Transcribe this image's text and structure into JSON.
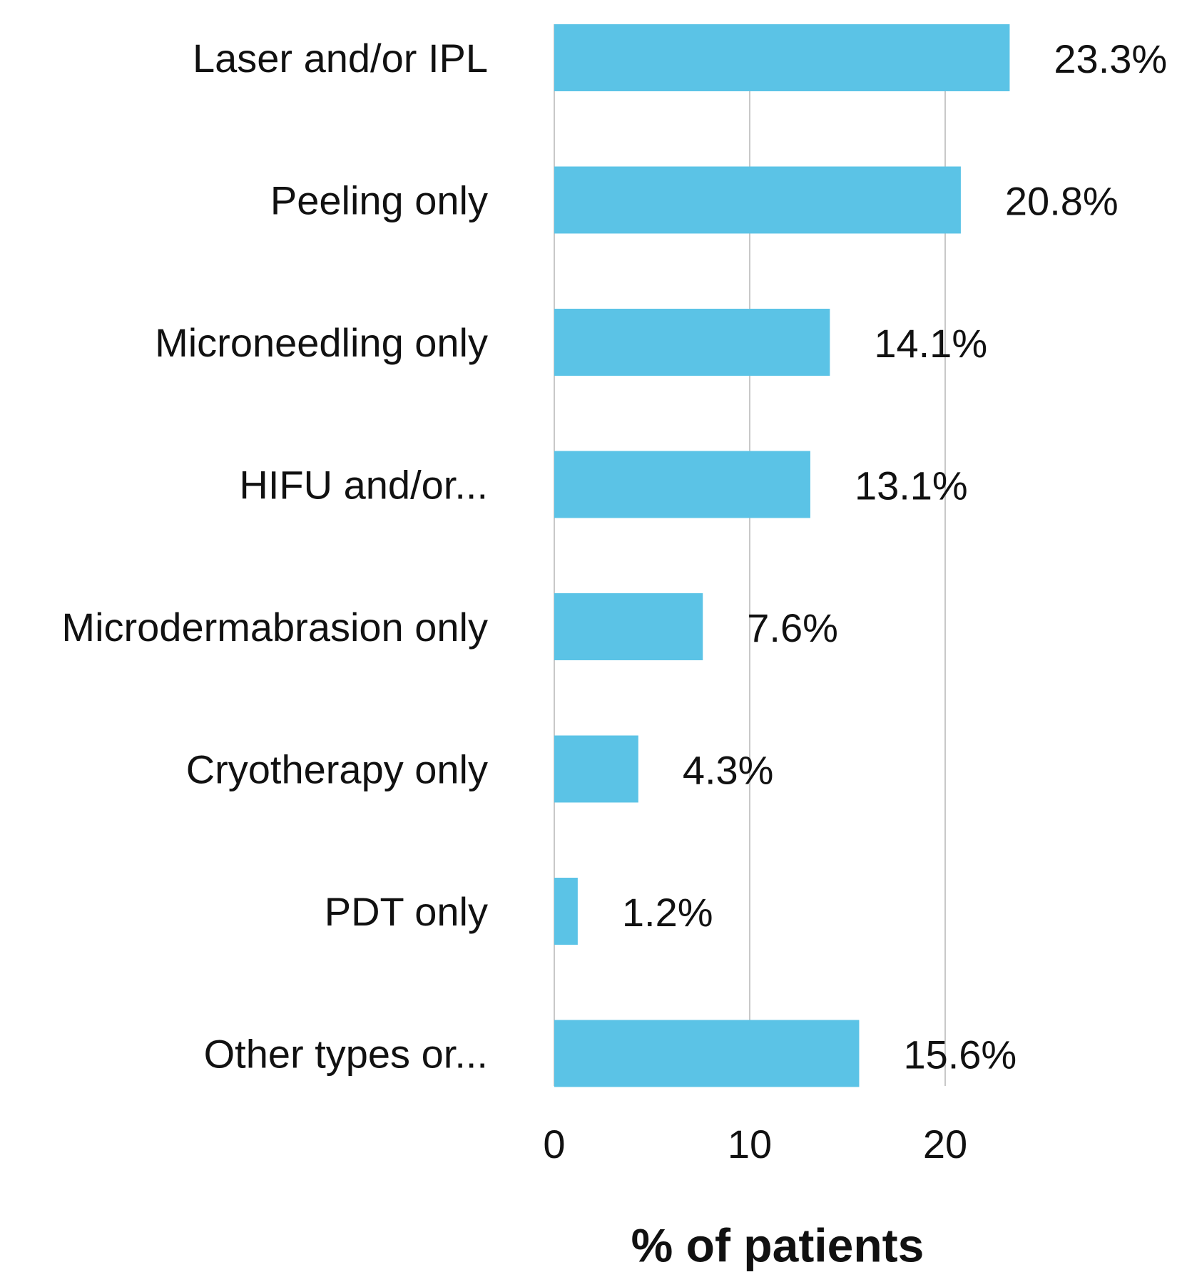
{
  "chart_data": {
    "type": "bar",
    "orientation": "horizontal",
    "categories": [
      "Laser and/or IPL",
      "Peeling only",
      "Microneedling only",
      "HIFU and/or...",
      "Microdermabrasion only",
      "Cryotherapy only",
      "PDT only",
      "Other types or..."
    ],
    "values": [
      23.3,
      20.8,
      14.1,
      13.1,
      7.6,
      4.3,
      1.2,
      15.6
    ],
    "value_labels": [
      "23.3%",
      "20.8%",
      "14.1%",
      "13.1%",
      "7.6%",
      "4.3%",
      "1.2%",
      "15.6%"
    ],
    "color": "#5bc3e6",
    "xlabel": "% of patients",
    "xlim": [
      0,
      30
    ],
    "xticks": [
      0,
      10,
      20
    ],
    "grid": true
  }
}
